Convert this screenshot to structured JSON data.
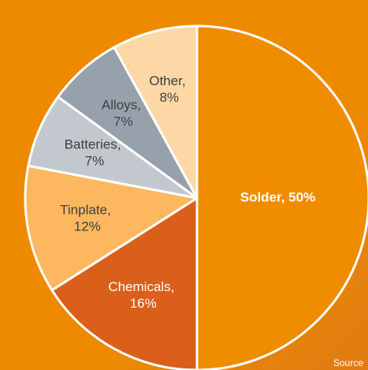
{
  "chart_data": {
    "type": "pie",
    "values": [
      50,
      16,
      12,
      7,
      7,
      8
    ],
    "value_labels": [
      "Solder, 50%",
      "Chemicals, 16%",
      "Tinplate, 12%",
      "Batteries, 7%",
      "Alloys, 7%",
      "Other, 8%"
    ],
    "colors": [
      "#f08c00",
      "#d95f1a",
      "#fdb75e",
      "#c2c8ce",
      "#97a1ab",
      "#fdd8a6"
    ],
    "label_colors": [
      "#ffffff",
      "#ffffff",
      "#404040",
      "#404040",
      "#404040",
      "#404040"
    ],
    "source": "Source"
  }
}
